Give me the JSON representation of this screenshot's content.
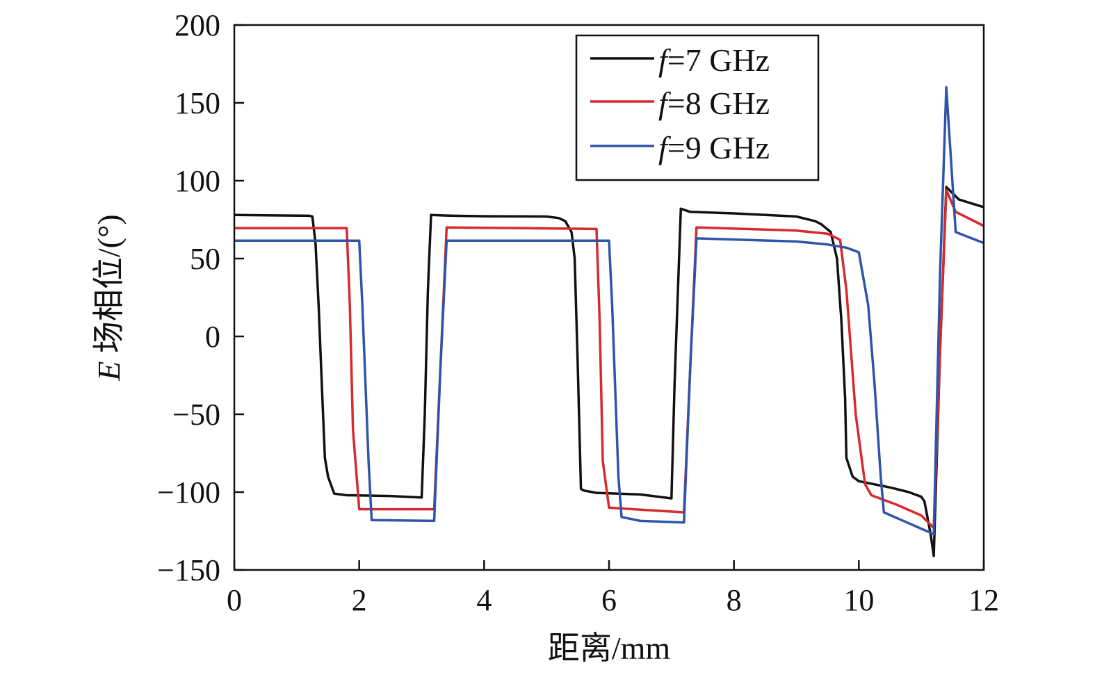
{
  "chart_data": {
    "type": "line",
    "xlabel": "距离/mm",
    "ylabel": "E 场相位/(°)",
    "ylabel_parts": {
      "italic": "E",
      "rest": " 场相位/(°)"
    },
    "xlim": [
      0,
      12
    ],
    "ylim": [
      -150,
      200
    ],
    "xticks": [
      0,
      2,
      4,
      6,
      8,
      10,
      12
    ],
    "yticks": [
      -150,
      -100,
      -50,
      0,
      50,
      100,
      150,
      200
    ],
    "xtick_labels": [
      "0",
      "2",
      "4",
      "6",
      "8",
      "10",
      "12"
    ],
    "ytick_labels": [
      "−150",
      "−100",
      "−50",
      "0",
      "50",
      "100",
      "150",
      "200"
    ],
    "grid": false,
    "legend_position": "top-right",
    "series": [
      {
        "name": "f=7 GHz",
        "name_parts": {
          "italic": "f",
          "rest": "=7 GHz"
        },
        "color": "#111111",
        "points": [
          [
            0,
            78
          ],
          [
            1.2,
            77.5
          ],
          [
            1.25,
            77
          ],
          [
            1.3,
            60
          ],
          [
            1.35,
            20
          ],
          [
            1.4,
            -30
          ],
          [
            1.45,
            -78
          ],
          [
            1.5,
            -90
          ],
          [
            1.6,
            -101
          ],
          [
            1.8,
            -102
          ],
          [
            2.5,
            -102.5
          ],
          [
            3.0,
            -103.5
          ],
          [
            3.05,
            -50
          ],
          [
            3.1,
            30
          ],
          [
            3.15,
            78
          ],
          [
            3.5,
            77.5
          ],
          [
            4.0,
            77.2
          ],
          [
            5.0,
            77
          ],
          [
            5.2,
            76
          ],
          [
            5.3,
            74
          ],
          [
            5.4,
            67
          ],
          [
            5.45,
            50
          ],
          [
            5.5,
            -20
          ],
          [
            5.55,
            -98
          ],
          [
            5.6,
            -99
          ],
          [
            5.8,
            -100.5
          ],
          [
            6.5,
            -101.5
          ],
          [
            7.0,
            -104
          ],
          [
            7.05,
            -30
          ],
          [
            7.15,
            82
          ],
          [
            7.3,
            80
          ],
          [
            8.0,
            79
          ],
          [
            9.0,
            77
          ],
          [
            9.3,
            74
          ],
          [
            9.4,
            72
          ],
          [
            9.55,
            67
          ],
          [
            9.65,
            50
          ],
          [
            9.72,
            10
          ],
          [
            9.78,
            -40
          ],
          [
            9.8,
            -78
          ],
          [
            9.9,
            -90
          ],
          [
            10.0,
            -93
          ],
          [
            10.5,
            -97
          ],
          [
            10.8,
            -100
          ],
          [
            11.0,
            -103
          ],
          [
            11.05,
            -106
          ],
          [
            11.15,
            -127
          ],
          [
            11.2,
            -141
          ],
          [
            11.3,
            -10
          ],
          [
            11.4,
            96
          ],
          [
            11.6,
            88
          ],
          [
            12.0,
            83
          ]
        ]
      },
      {
        "name": "f=8 GHz",
        "name_parts": {
          "italic": "f",
          "rest": "=8 GHz"
        },
        "color": "#d62a2e",
        "points": [
          [
            0,
            69.5
          ],
          [
            1.8,
            69.5
          ],
          [
            1.85,
            20
          ],
          [
            1.9,
            -60
          ],
          [
            2.0,
            -111
          ],
          [
            3.2,
            -111
          ],
          [
            3.3,
            -20
          ],
          [
            3.4,
            70
          ],
          [
            5.8,
            69
          ],
          [
            5.85,
            10
          ],
          [
            5.9,
            -80
          ],
          [
            6.0,
            -110
          ],
          [
            7.2,
            -113
          ],
          [
            7.3,
            -20
          ],
          [
            7.4,
            70
          ],
          [
            9.0,
            68
          ],
          [
            9.5,
            66
          ],
          [
            9.7,
            62
          ],
          [
            9.8,
            30
          ],
          [
            9.95,
            -50
          ],
          [
            10.1,
            -95
          ],
          [
            10.2,
            -102
          ],
          [
            10.6,
            -108
          ],
          [
            11.0,
            -115
          ],
          [
            11.2,
            -123
          ],
          [
            11.3,
            -10
          ],
          [
            11.4,
            94
          ],
          [
            11.55,
            80
          ],
          [
            12.0,
            71
          ]
        ]
      },
      {
        "name": "f=9 GHz",
        "name_parts": {
          "italic": "f",
          "rest": "=9 GHz"
        },
        "color": "#2e55a8",
        "points": [
          [
            0,
            61.5
          ],
          [
            2.0,
            61.5
          ],
          [
            2.05,
            20
          ],
          [
            2.15,
            -80
          ],
          [
            2.2,
            -118
          ],
          [
            3.2,
            -118.5
          ],
          [
            3.3,
            -20
          ],
          [
            3.4,
            61.5
          ],
          [
            6.0,
            61.5
          ],
          [
            6.05,
            20
          ],
          [
            6.15,
            -90
          ],
          [
            6.2,
            -116
          ],
          [
            6.5,
            -118.5
          ],
          [
            7.2,
            -119.5
          ],
          [
            7.3,
            -20
          ],
          [
            7.4,
            63
          ],
          [
            9.0,
            61
          ],
          [
            9.5,
            59
          ],
          [
            9.8,
            57
          ],
          [
            10.0,
            54
          ],
          [
            10.15,
            20
          ],
          [
            10.25,
            -30
          ],
          [
            10.35,
            -90
          ],
          [
            10.4,
            -113
          ],
          [
            10.8,
            -120
          ],
          [
            11.2,
            -127
          ],
          [
            11.3,
            40
          ],
          [
            11.4,
            160
          ],
          [
            11.55,
            67
          ],
          [
            12.0,
            60
          ]
        ]
      }
    ]
  }
}
